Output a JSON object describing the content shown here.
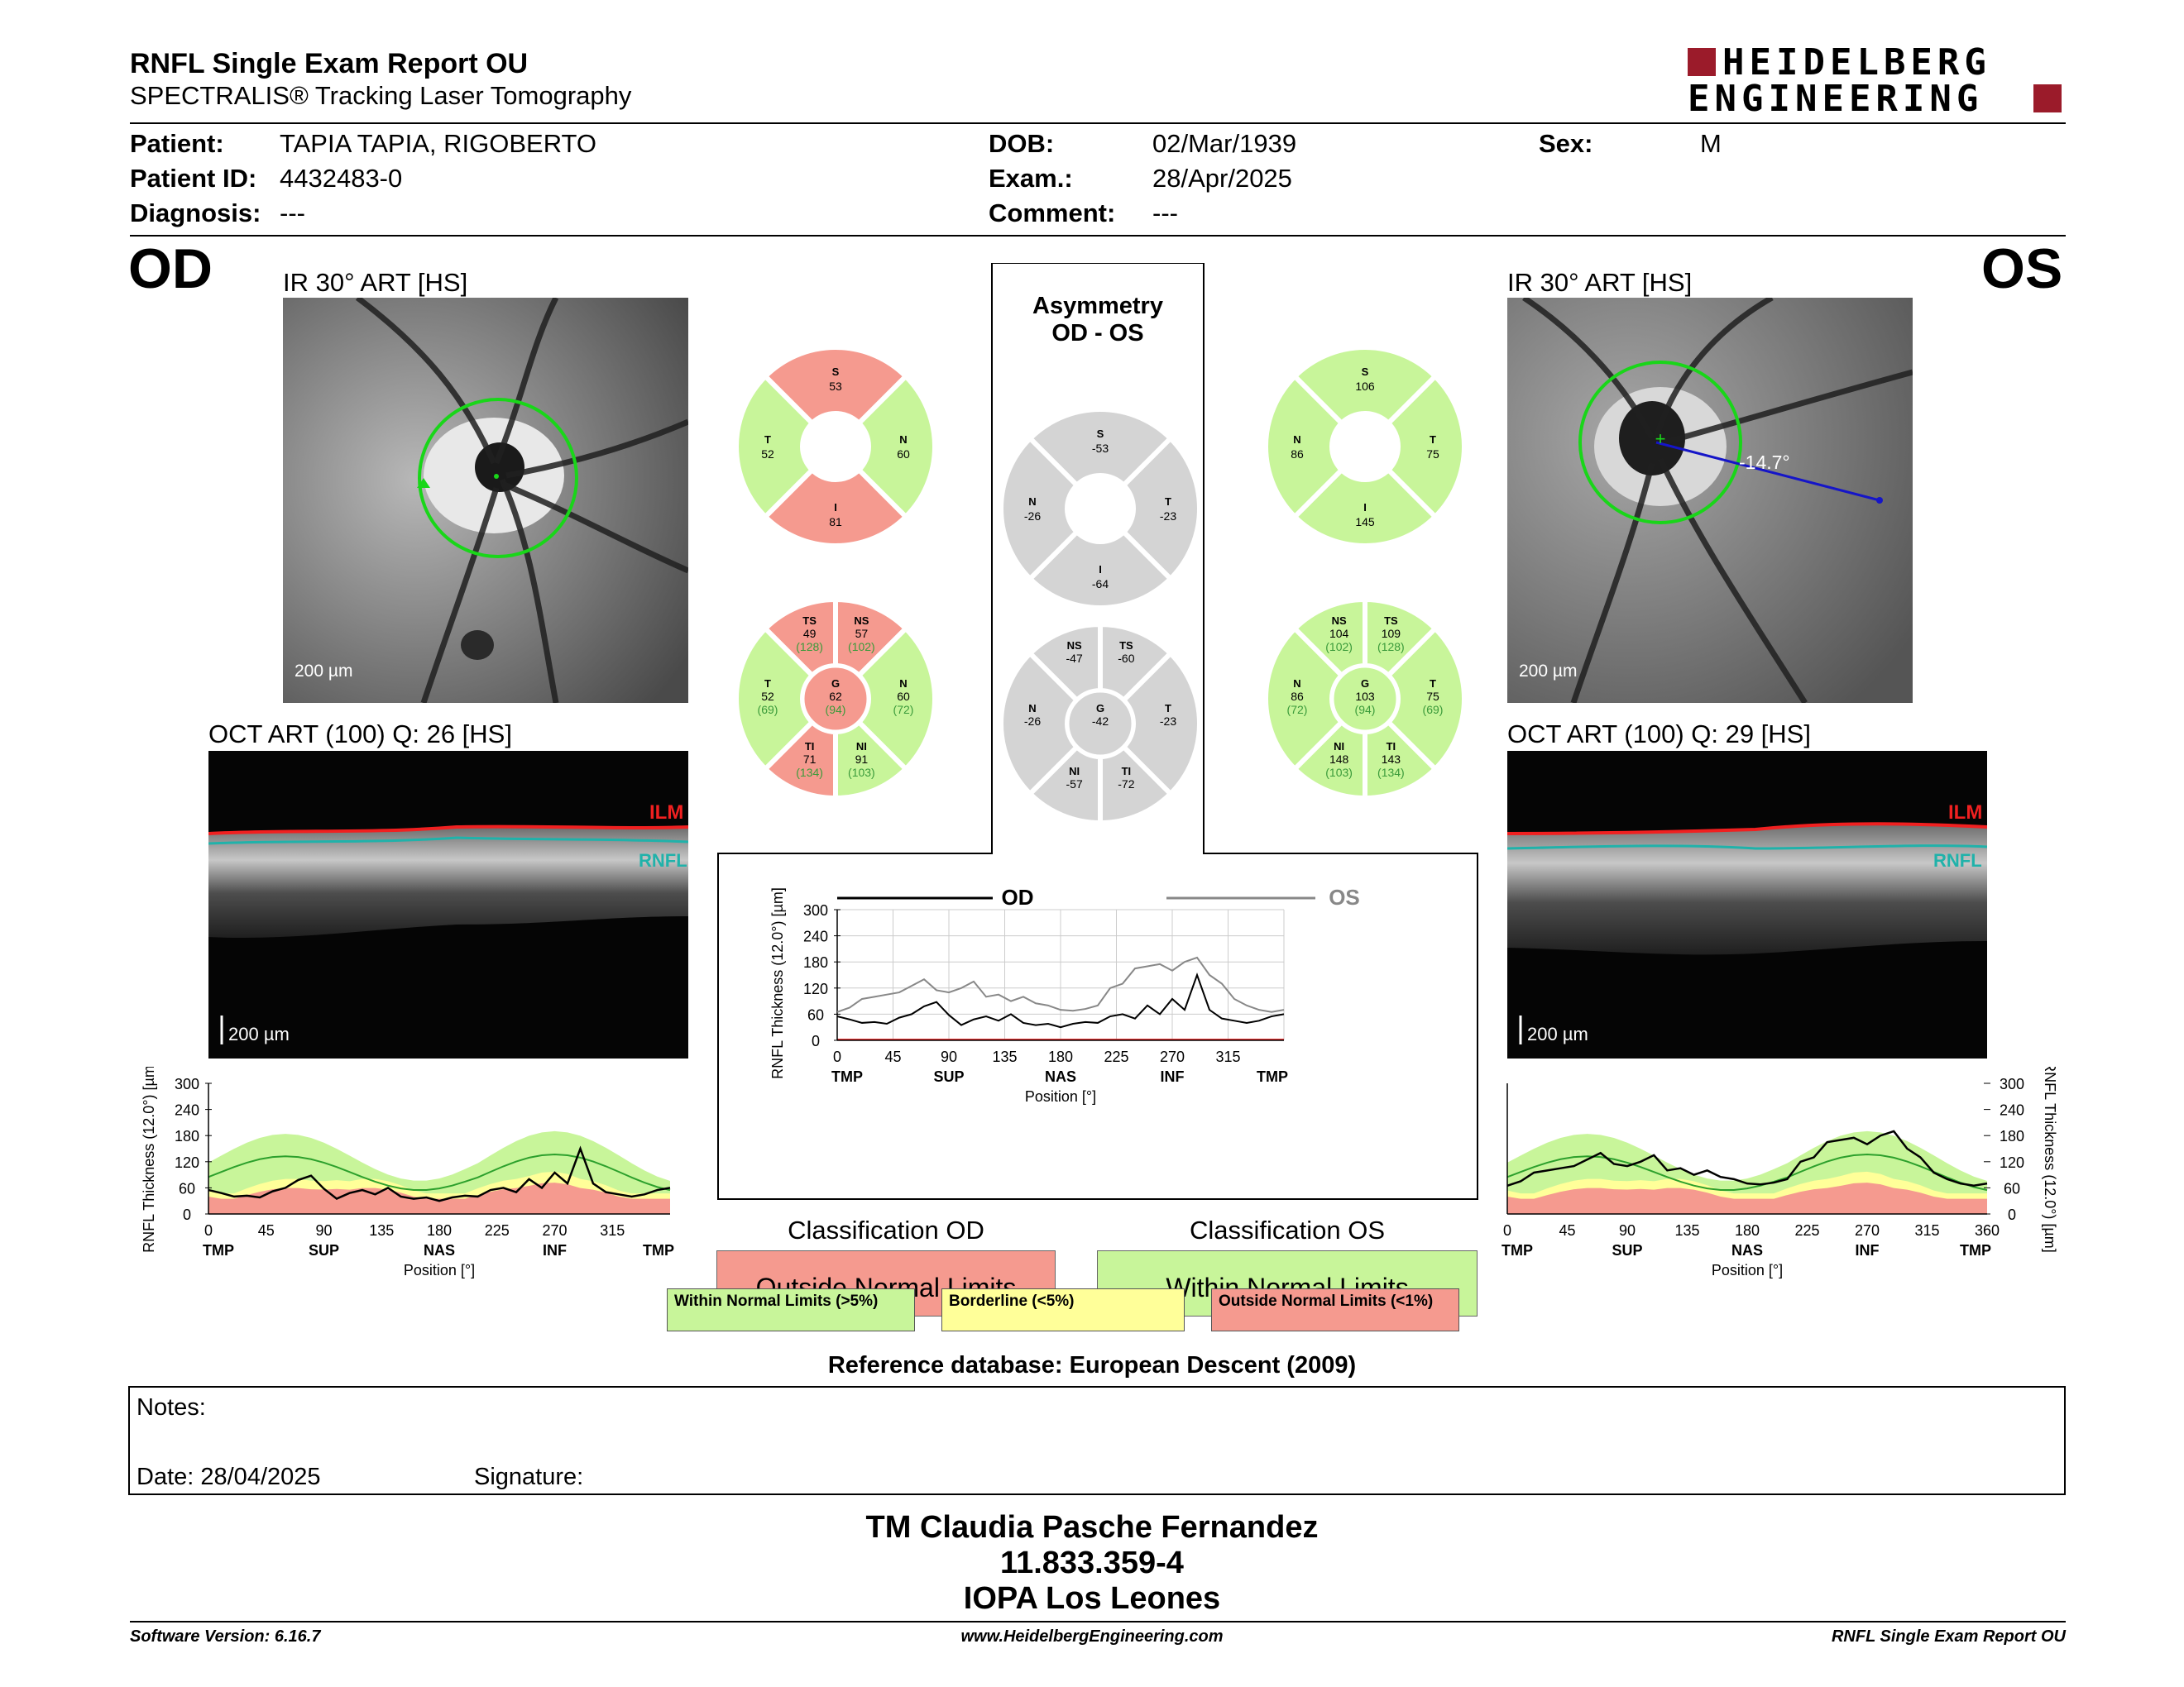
{
  "header": {
    "title": "RNFL Single Exam Report OU",
    "subtitle": "SPECTRALIS® Tracking Laser Tomography",
    "logo_line1": "HEIDELBERG",
    "logo_line2": "ENGINEERING"
  },
  "patient": {
    "patient_label": "Patient:",
    "patient_value": "TAPIA TAPIA, RIGOBERTO",
    "id_label": "Patient ID:",
    "id_value": "4432483-0",
    "diag_label": "Diagnosis:",
    "diag_value": "---",
    "dob_label": "DOB:",
    "dob_value": "02/Mar/1939",
    "exam_label": "Exam.:",
    "exam_value": "28/Apr/2025",
    "comment_label": "Comment:",
    "comment_value": "---",
    "sex_label": "Sex:",
    "sex_value": "M"
  },
  "od": {
    "eye": "OD",
    "ir_caption": "IR 30° ART [HS]",
    "oct_caption": "OCT ART (100) Q: 26 [HS]",
    "scale": "200 µm",
    "ilm": "ILM",
    "rnfl": "RNFL",
    "sector4": {
      "S": "53",
      "N": "60",
      "I": "81",
      "T": "52"
    },
    "sector6": {
      "TS": [
        "49",
        "(128)"
      ],
      "NS": [
        "57",
        "(102)"
      ],
      "N": [
        "60",
        "(72)"
      ],
      "NI": [
        "91",
        "(103)"
      ],
      "TI": [
        "71",
        "(134)"
      ],
      "T": [
        "52",
        "(69)"
      ],
      "G": [
        "62",
        "(94)"
      ]
    },
    "classification_title": "Classification OD",
    "classification": "Outside Normal Limits"
  },
  "os": {
    "eye": "OS",
    "ir_caption": "IR 30° ART [HS]",
    "oct_caption": "OCT ART (100) Q: 29 [HS]",
    "scale": "200 µm",
    "ilm": "ILM",
    "rnfl": "RNFL",
    "angle": "-14.7°",
    "sector4": {
      "S": "106",
      "N": "86",
      "I": "145",
      "T": "75"
    },
    "sector6": {
      "NS": [
        "104",
        "(102)"
      ],
      "TS": [
        "109",
        "(128)"
      ],
      "T": [
        "75",
        "(69)"
      ],
      "TI": [
        "143",
        "(134)"
      ],
      "NI": [
        "148",
        "(103)"
      ],
      "N": [
        "86",
        "(72)"
      ],
      "G": [
        "103",
        "(94)"
      ]
    },
    "classification_title": "Classification OS",
    "classification": "Within Normal Limits"
  },
  "asym": {
    "title1": "Asymmetry",
    "title2": "OD - OS",
    "sector4": {
      "S": "-53",
      "N": "-26",
      "I": "-64",
      "T": "-23"
    },
    "sector6": {
      "NS": "-47",
      "TS": "-60",
      "N": "-26",
      "G": "-42",
      "T": "-23",
      "NI": "-57",
      "TI": "-72"
    },
    "legend_od": "OD",
    "legend_os": "OS"
  },
  "labels": {
    "s": "S",
    "n": "N",
    "i": "I",
    "t": "T",
    "ts": "TS",
    "ns": "NS",
    "ni": "NI",
    "ti": "TI",
    "g": "G"
  },
  "axes": {
    "ylabel": "RNFL Thickness (12.0°) [µm]",
    "xlabel": "Position [°]",
    "yticks": [
      "0",
      "60",
      "120",
      "180",
      "240",
      "300"
    ],
    "xticks_od": [
      "0",
      "45",
      "90",
      "135",
      "180",
      "225",
      "270",
      "315"
    ],
    "xticks_os": [
      "0",
      "45",
      "90",
      "135",
      "180",
      "225",
      "270",
      "315",
      "360"
    ],
    "regions": [
      "TMP",
      "SUP",
      "NAS",
      "INF",
      "TMP"
    ]
  },
  "legend": {
    "within": "Within Normal Limits (>5%)",
    "borderline": "Borderline (<5%)",
    "outside": "Outside Normal Limits (<1%)"
  },
  "reference": "Reference database: European Descent (2009)",
  "notes": {
    "label": "Notes:",
    "date": "Date: 28/04/2025",
    "signature": "Signature:"
  },
  "signoff": {
    "line1": "TM Claudia Pasche Fernandez",
    "line2": "11.833.359-4",
    "line3": "IOPA Los Leones"
  },
  "footer": {
    "left": "Software Version: 6.16.7",
    "center": "www.HeidelbergEngineering.com",
    "right": "RNFL Single Exam Report OU"
  },
  "colors": {
    "green": "#c8f59a",
    "yellow": "#ffff99",
    "red": "#f59a8f",
    "gray": "#d4d4d4",
    "logo": "#9b1b2a"
  },
  "chart_data": [
    {
      "type": "line",
      "title": "OD",
      "xlabel": "Position [°]",
      "ylabel": "RNFL Thickness (12.0°) [µm]",
      "xlim": [
        0,
        360
      ],
      "ylim": [
        0,
        300
      ],
      "x": [
        0,
        10,
        20,
        30,
        40,
        50,
        60,
        70,
        80,
        90,
        100,
        110,
        120,
        130,
        140,
        150,
        160,
        170,
        180,
        190,
        200,
        210,
        220,
        230,
        240,
        250,
        260,
        270,
        280,
        290,
        300,
        310,
        320,
        330,
        340,
        350,
        360
      ],
      "series": [
        {
          "name": "OD",
          "values": [
            55,
            48,
            40,
            42,
            38,
            52,
            60,
            78,
            88,
            58,
            35,
            48,
            55,
            45,
            60,
            40,
            35,
            38,
            30,
            38,
            42,
            40,
            55,
            60,
            50,
            80,
            60,
            95,
            70,
            150,
            70,
            50,
            45,
            40,
            45,
            55,
            60
          ]
        }
      ]
    },
    {
      "type": "line",
      "title": "OS",
      "xlabel": "Position [°]",
      "ylabel": "RNFL Thickness (12.0°) [µm]",
      "xlim": [
        0,
        360
      ],
      "ylim": [
        0,
        300
      ],
      "x": [
        0,
        10,
        20,
        30,
        40,
        50,
        60,
        70,
        80,
        90,
        100,
        110,
        120,
        130,
        140,
        150,
        160,
        170,
        180,
        190,
        200,
        210,
        220,
        230,
        240,
        250,
        260,
        270,
        280,
        290,
        300,
        310,
        320,
        330,
        340,
        350,
        360
      ],
      "series": [
        {
          "name": "OS",
          "values": [
            65,
            75,
            95,
            100,
            105,
            110,
            125,
            140,
            115,
            110,
            120,
            135,
            100,
            105,
            90,
            100,
            85,
            80,
            70,
            68,
            72,
            80,
            120,
            130,
            165,
            170,
            175,
            160,
            180,
            190,
            150,
            130,
            95,
            80,
            70,
            65,
            70
          ]
        }
      ]
    },
    {
      "type": "line",
      "xlabel": "Position [°]",
      "ylabel": "RNFL Thickness (12.0°) [µm]",
      "xlim": [
        0,
        360
      ],
      "ylim": [
        0,
        300
      ],
      "x": [
        0,
        10,
        20,
        30,
        40,
        50,
        60,
        70,
        80,
        90,
        100,
        110,
        120,
        130,
        140,
        150,
        160,
        170,
        180,
        190,
        200,
        210,
        220,
        230,
        240,
        250,
        260,
        270,
        280,
        290,
        300,
        310,
        320,
        330,
        340,
        350,
        360
      ],
      "series": [
        {
          "name": "OD",
          "values": [
            55,
            48,
            40,
            42,
            38,
            52,
            60,
            78,
            88,
            58,
            35,
            48,
            55,
            45,
            60,
            40,
            35,
            38,
            30,
            38,
            42,
            40,
            55,
            60,
            50,
            80,
            60,
            95,
            70,
            150,
            70,
            50,
            45,
            40,
            45,
            55,
            60
          ]
        },
        {
          "name": "OS",
          "values": [
            65,
            75,
            95,
            100,
            105,
            110,
            125,
            140,
            115,
            110,
            120,
            135,
            100,
            105,
            90,
            100,
            85,
            80,
            70,
            68,
            72,
            80,
            120,
            130,
            165,
            170,
            175,
            160,
            180,
            190,
            150,
            130,
            95,
            80,
            70,
            65,
            70
          ]
        }
      ]
    }
  ]
}
